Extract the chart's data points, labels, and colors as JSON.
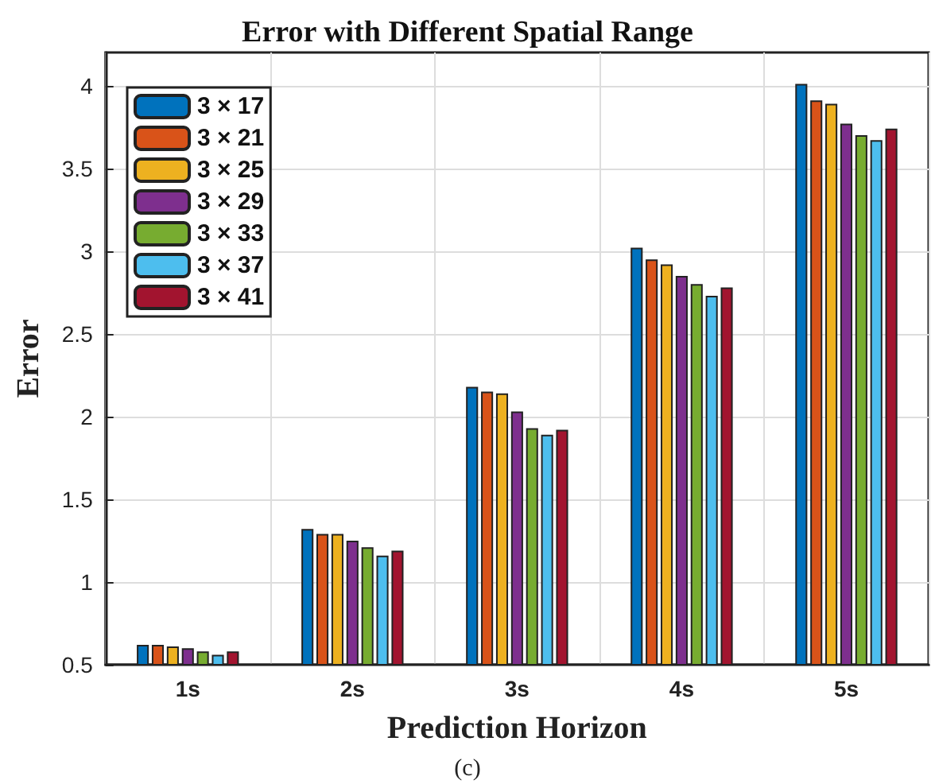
{
  "chart_data": {
    "type": "bar",
    "title": "Error with Different Spatial Range",
    "xlabel": "Prediction Horizon",
    "ylabel": "Error",
    "annotations": [
      "(c)"
    ],
    "categories": [
      "1s",
      "2s",
      "3s",
      "4s",
      "5s"
    ],
    "series": [
      {
        "name": "3 × 17",
        "color": "#0072bd",
        "values": [
          0.62,
          1.32,
          2.18,
          3.02,
          4.01
        ]
      },
      {
        "name": "3 × 21",
        "color": "#d95319",
        "values": [
          0.62,
          1.29,
          2.15,
          2.95,
          3.91
        ]
      },
      {
        "name": "3 × 25",
        "color": "#edb120",
        "values": [
          0.61,
          1.29,
          2.14,
          2.92,
          3.89
        ]
      },
      {
        "name": "3 × 29",
        "color": "#7e2f8e",
        "values": [
          0.6,
          1.25,
          2.03,
          2.85,
          3.77
        ]
      },
      {
        "name": "3 × 33",
        "color": "#77ac30",
        "values": [
          0.58,
          1.21,
          1.93,
          2.8,
          3.7
        ]
      },
      {
        "name": "3 × 37",
        "color": "#4dbeee",
        "values": [
          0.56,
          1.16,
          1.89,
          2.73,
          3.67
        ]
      },
      {
        "name": "3 × 41",
        "color": "#a2142f",
        "values": [
          0.58,
          1.19,
          1.92,
          2.78,
          3.74
        ]
      }
    ],
    "ylim": [
      0.5,
      4.2
    ],
    "yticks": [
      0.5,
      1,
      1.5,
      2,
      2.5,
      3,
      3.5,
      4
    ],
    "grid": true,
    "legend": "top left"
  }
}
